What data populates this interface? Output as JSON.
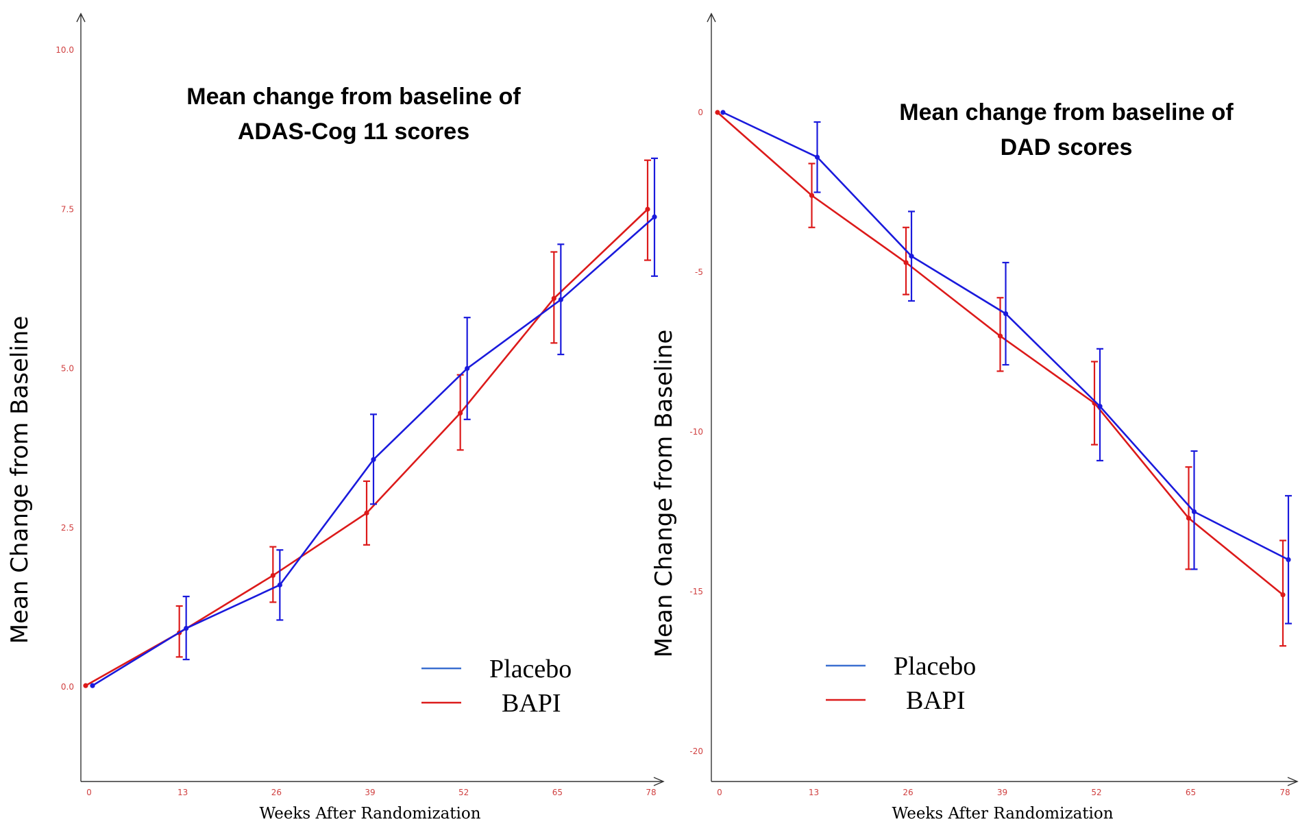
{
  "chart_data": [
    {
      "type": "line",
      "title": [
        "Mean change from baseline of",
        "ADAS-Cog 11 scores"
      ],
      "xlabel": "Weeks After Randomization",
      "ylabel": "Mean Change from Baseline",
      "x": [
        0,
        13,
        26,
        39,
        52,
        65,
        78
      ],
      "x_tick_labels": [
        "0",
        "13",
        "26",
        "39",
        "52",
        "65",
        "78"
      ],
      "y_ticks": [
        0,
        2.5,
        5,
        7.5,
        10
      ],
      "y_tick_labels": [
        "0.0",
        "2.5",
        "5.0",
        "7.5",
        "10.0"
      ],
      "ylim": [
        -1.5,
        11
      ],
      "grid": false,
      "legend_position": "bottom-right",
      "series": [
        {
          "name": "Placebo",
          "color": "#1a1adc",
          "values": [
            0.02,
            0.92,
            1.6,
            3.57,
            5.0,
            6.08,
            7.38
          ],
          "lower": [
            0.02,
            0.43,
            1.05,
            2.87,
            4.2,
            5.22,
            6.45
          ],
          "upper": [
            0.02,
            1.42,
            2.15,
            4.28,
            5.8,
            6.95,
            8.3
          ]
        },
        {
          "name": "BAPI",
          "color": "#dc1a1a",
          "values": [
            0.02,
            0.85,
            1.75,
            2.73,
            4.3,
            6.1,
            7.5
          ],
          "lower": [
            0.02,
            0.47,
            1.33,
            2.23,
            3.72,
            5.4,
            6.7
          ],
          "upper": [
            0.02,
            1.27,
            2.2,
            3.23,
            4.9,
            6.83,
            8.27
          ]
        }
      ]
    },
    {
      "type": "line",
      "title": [
        "Mean change from baseline of",
        "DAD scores"
      ],
      "xlabel": "Weeks After Randomization",
      "ylabel": "Mean Change from Baseline",
      "x": [
        0,
        13,
        26,
        39,
        52,
        65,
        78
      ],
      "x_tick_labels": [
        "0",
        "13",
        "26",
        "39",
        "52",
        "65",
        "78"
      ],
      "y_ticks": [
        0,
        -5,
        -10,
        -15,
        -20
      ],
      "y_tick_labels": [
        "0",
        "-5",
        "-10",
        "-15",
        "-20"
      ],
      "ylim": [
        -21.5,
        3
      ],
      "grid": false,
      "legend_position": "bottom-left",
      "series": [
        {
          "name": "Placebo",
          "color": "#1a1adc",
          "values": [
            0,
            -1.4,
            -4.5,
            -6.3,
            -9.2,
            -12.5,
            -14.0
          ],
          "lower": [
            0,
            -2.5,
            -5.9,
            -7.9,
            -10.9,
            -14.3,
            -16.0
          ],
          "upper": [
            0,
            -0.3,
            -3.1,
            -4.7,
            -7.4,
            -10.6,
            -12.0
          ]
        },
        {
          "name": "BAPI",
          "color": "#dc1a1a",
          "values": [
            0,
            -2.6,
            -4.7,
            -7.0,
            -9.1,
            -12.7,
            -15.1
          ],
          "lower": [
            0,
            -3.6,
            -5.7,
            -8.1,
            -10.4,
            -14.3,
            -16.7
          ],
          "upper": [
            0,
            -1.6,
            -3.6,
            -5.8,
            -7.8,
            -11.1,
            -13.4
          ]
        }
      ]
    }
  ]
}
